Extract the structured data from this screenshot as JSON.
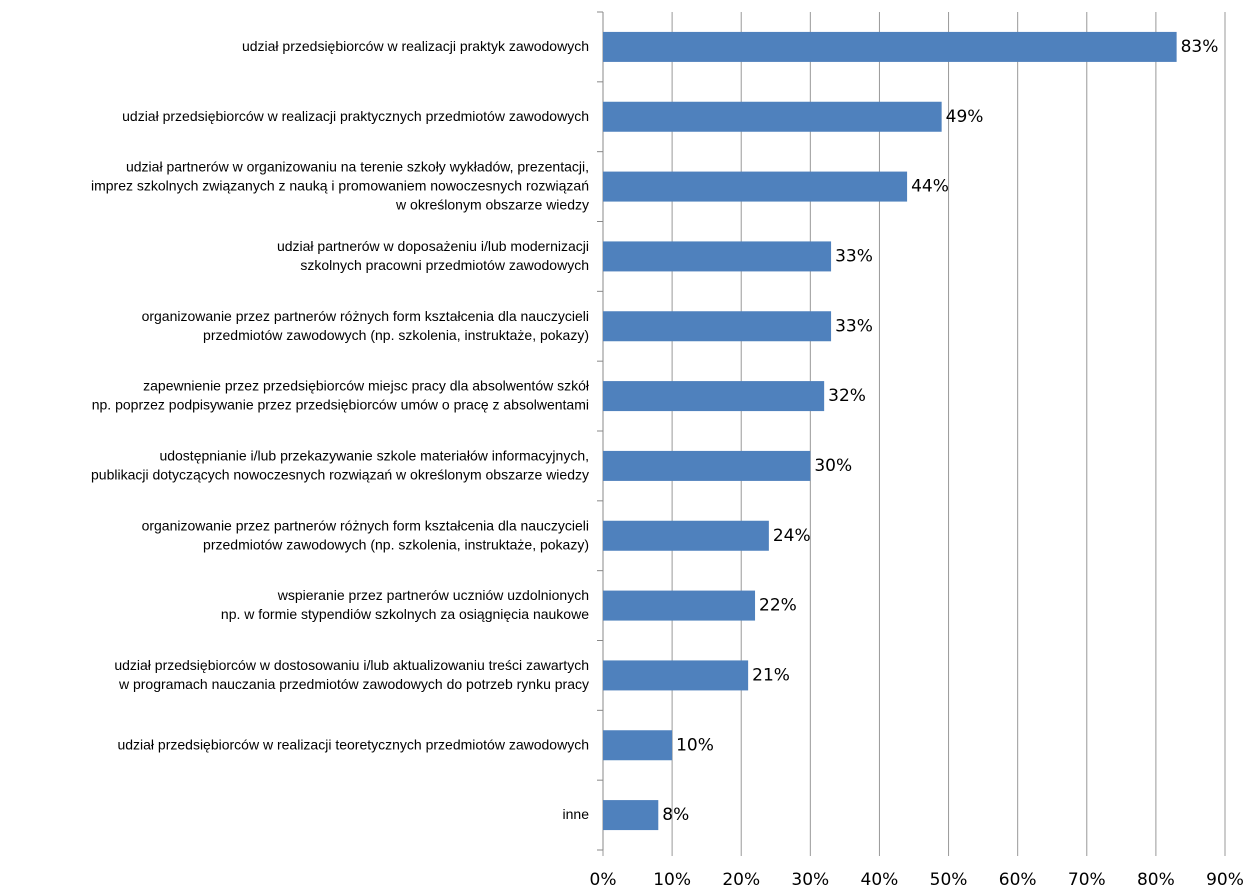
{
  "chart_data": {
    "type": "barh",
    "categories": [
      [
        "udział przedsiębiorców w realizacji praktyk zawodowych"
      ],
      [
        "udział przedsiębiorców w realizacji praktycznych przedmiotów zawodowych"
      ],
      [
        "udział partnerów w organizowaniu na terenie szkoły wykładów, prezentacji,",
        "imprez szkolnych związanych z nauką i promowaniem nowoczesnych rozwiązań",
        "w określonym obszarze wiedzy"
      ],
      [
        "udział partnerów w doposażeniu i/lub modernizacji",
        "szkolnych pracowni przedmiotów zawodowych"
      ],
      [
        "organizowanie przez partnerów różnych form kształcenia dla nauczycieli",
        "przedmiotów zawodowych (np. szkolenia, instruktaże, pokazy)"
      ],
      [
        "zapewnienie przez przedsiębiorców miejsc pracy dla absolwentów szkół",
        "np. poprzez podpisywanie przez przedsiębiorców umów o pracę z absolwentami"
      ],
      [
        "udostępnianie i/lub przekazywanie szkole materiałów informacyjnych,",
        "publikacji dotyczących nowoczesnych rozwiązań w określonym obszarze wiedzy"
      ],
      [
        "organizowanie przez partnerów różnych form kształcenia dla nauczycieli",
        "przedmiotów zawodowych (np. szkolenia, instruktaże, pokazy)"
      ],
      [
        "wspieranie przez partnerów uczniów uzdolnionych",
        "np. w formie stypendiów szkolnych za osiągnięcia naukowe"
      ],
      [
        "udział przedsiębiorców w dostosowaniu i/lub aktualizowaniu treści zawartych",
        "w programach nauczania przedmiotów zawodowych do potrzeb rynku pracy"
      ],
      [
        "udział przedsiębiorców w realizacji teoretycznych przedmiotów zawodowych"
      ],
      [
        "inne"
      ]
    ],
    "values": [
      83,
      49,
      44,
      33,
      33,
      32,
      30,
      24,
      22,
      21,
      10,
      8
    ],
    "value_labels": [
      "83%",
      "49%",
      "44%",
      "33%",
      "33%",
      "32%",
      "30%",
      "24%",
      "22%",
      "21%",
      "10%",
      "8%"
    ],
    "color": "#4f81bd",
    "xlim": [
      0,
      90
    ],
    "xticks": [
      {
        "value": 0,
        "label": "0%"
      },
      {
        "value": 10,
        "label": "10%"
      },
      {
        "value": 20,
        "label": "20%"
      },
      {
        "value": 30,
        "label": "30%"
      },
      {
        "value": 40,
        "label": "40%"
      },
      {
        "value": 50,
        "label": "50%"
      },
      {
        "value": 60,
        "label": "60%"
      },
      {
        "value": 70,
        "label": "70%"
      },
      {
        "value": 80,
        "label": "80%"
      },
      {
        "value": 90,
        "label": "90%"
      }
    ],
    "grid": true
  }
}
